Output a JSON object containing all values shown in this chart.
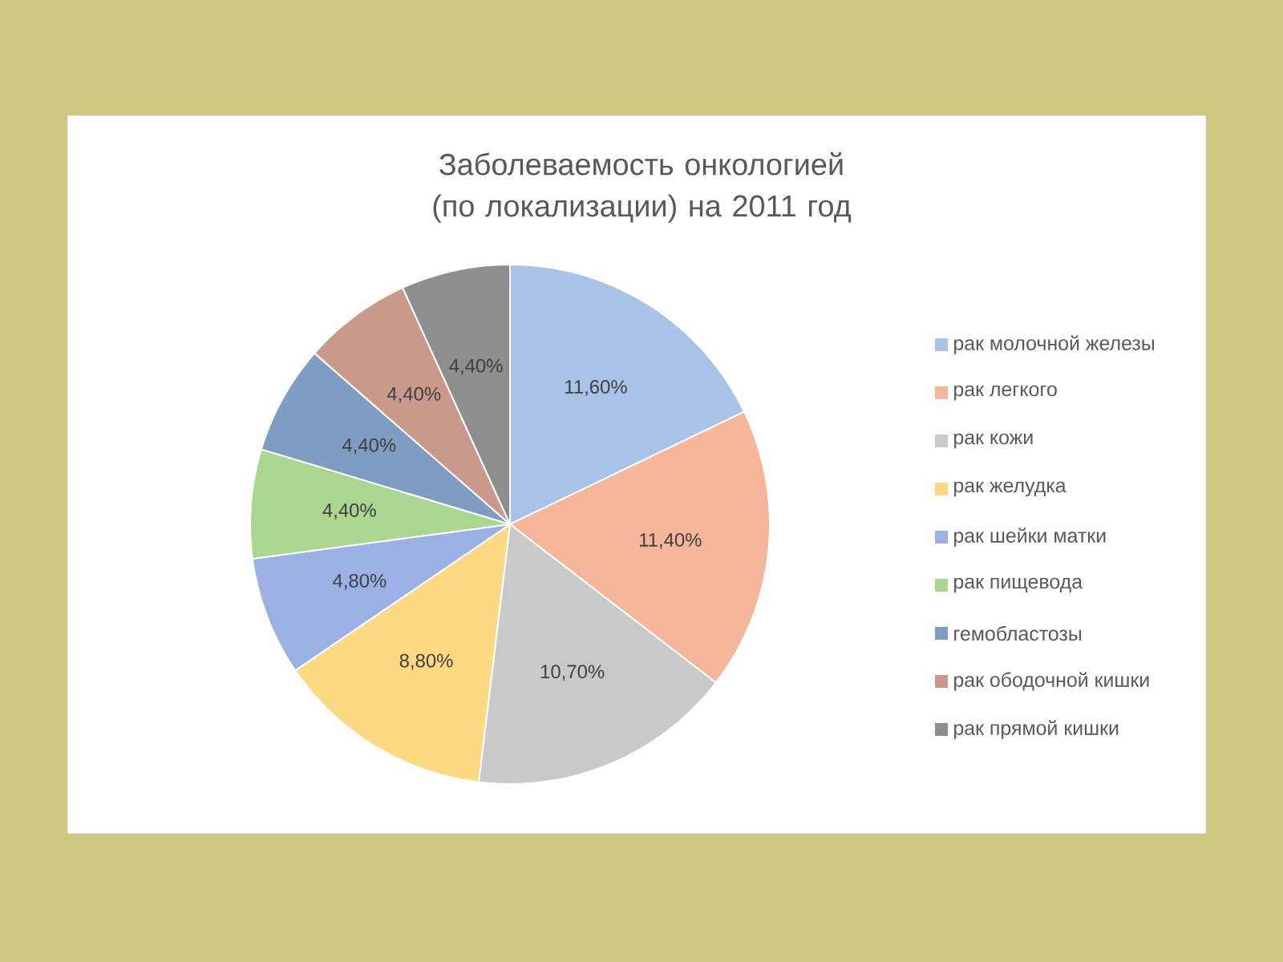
{
  "chart_data": {
    "type": "pie",
    "title": "Заболеваемость  онкологией (по локализации) на 2011 год",
    "categories": [
      "рак молочной железы",
      "рак легкого",
      "рак кожи",
      "рак желудка",
      "рак шейки матки",
      "рак пищевода",
      "гемобластозы",
      "рак ободочной кишки",
      "рак прямой кишки"
    ],
    "values": [
      11.6,
      11.4,
      10.7,
      8.8,
      4.8,
      4.4,
      4.4,
      4.4,
      4.4
    ],
    "value_labels": [
      "11,60%",
      "11,40%",
      "10,70%",
      "8,80%",
      "4,80%",
      "4,40%",
      "4,40%",
      "4,40%",
      "4,40%"
    ],
    "colors": [
      "#a9c3e8",
      "#f5b69c",
      "#c9c9c9",
      "#fed983",
      "#9cb0e6",
      "#abd690",
      "#7f9cc2",
      "#c99a8c",
      "#8e8e8e"
    ],
    "legend": "right"
  }
}
